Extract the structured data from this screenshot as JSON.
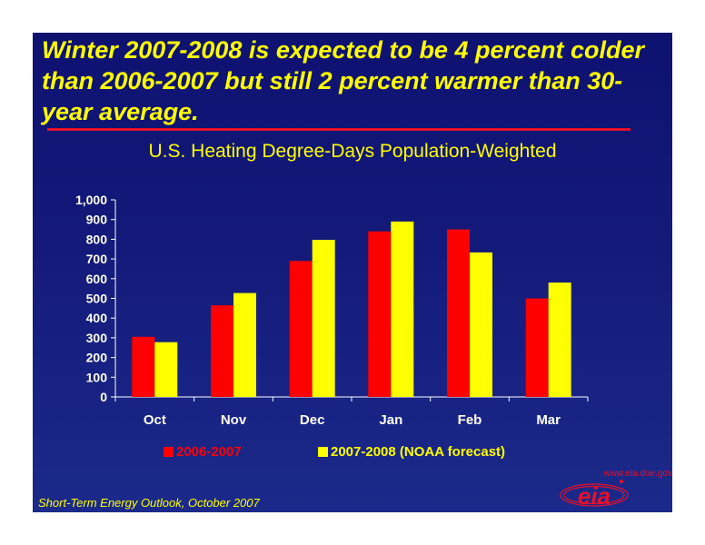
{
  "headline": "Winter 2007-2008 is expected to be 4 percent colder than 2006-2007 but still 2 percent warmer than 30-year average.",
  "source": "Short-Term Energy Outlook, October 2007",
  "logo": {
    "url_text": "www.eia.doe.gov",
    "wordmark": "eia"
  },
  "colors": {
    "background": "#141a7a",
    "accent_text": "#ffff00",
    "rule": "#e8102a"
  },
  "chart_data": {
    "type": "bar",
    "title": "U.S. Heating Degree-Days Population-Weighted",
    "xlabel": "",
    "ylabel": "",
    "categories": [
      "Oct",
      "Nov",
      "Dec",
      "Jan",
      "Feb",
      "Mar"
    ],
    "series": [
      {
        "name": "2006-2007",
        "color": "#ff0000",
        "values": [
          305,
          465,
          690,
          840,
          850,
          500
        ]
      },
      {
        "name": "2007-2008 (NOAA forecast)",
        "color": "#ffff00",
        "values": [
          278,
          527,
          797,
          890,
          733,
          580
        ]
      }
    ],
    "ylim": [
      0,
      1000
    ],
    "yticks": [
      0,
      100,
      200,
      300,
      400,
      500,
      600,
      700,
      800,
      900,
      1000
    ],
    "ytick_labels": [
      "0",
      "100",
      "200",
      "300",
      "400",
      "500",
      "600",
      "700",
      "800",
      "900",
      "1,000"
    ],
    "grid": false,
    "legend_position": "bottom"
  }
}
